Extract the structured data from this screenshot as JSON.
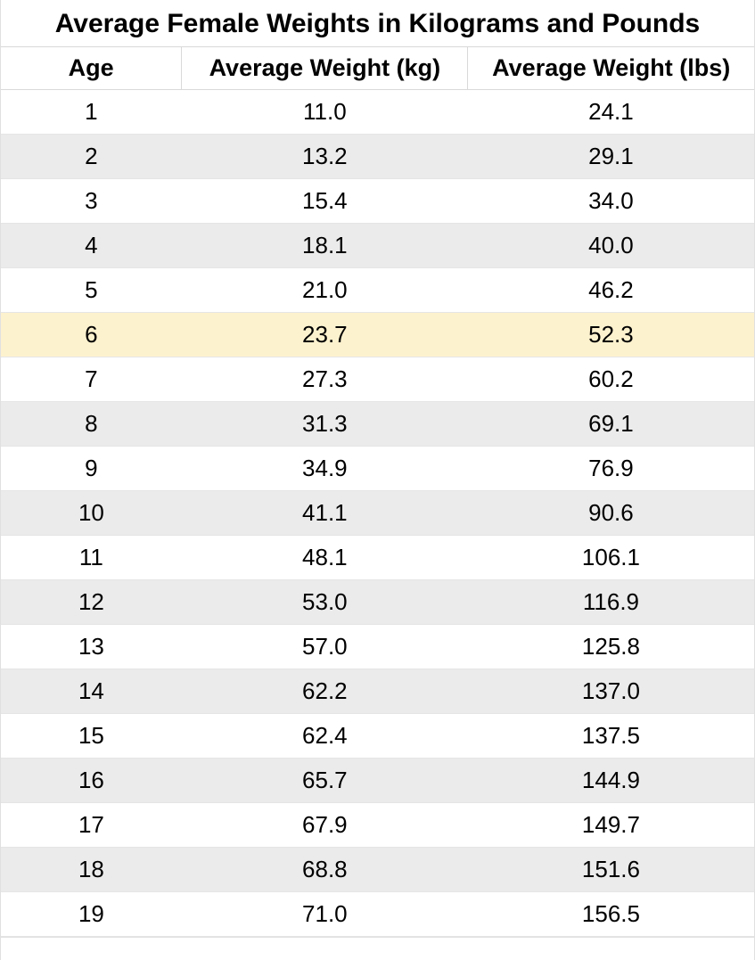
{
  "title": "Average Female Weights in Kilograms and Pounds",
  "columns": {
    "age": "Age",
    "kg": "Average Weight (kg)",
    "lbs": "Average Weight (lbs)"
  },
  "colors": {
    "row_odd_bg": "#ffffff",
    "row_even_bg": "#ebebeb",
    "highlight_bg": "#fdf2ce",
    "border": "#e0e0e0",
    "text": "#000000"
  },
  "typography": {
    "title_fontsize": 30,
    "header_fontsize": 27,
    "cell_fontsize": 26,
    "font_family": "Arial"
  },
  "column_widths_pct": [
    24,
    38,
    38
  ],
  "highlight_row_index": 5,
  "rows": [
    {
      "age": "1",
      "kg": "11.0",
      "lbs": "24.1"
    },
    {
      "age": "2",
      "kg": "13.2",
      "lbs": "29.1"
    },
    {
      "age": "3",
      "kg": "15.4",
      "lbs": "34.0"
    },
    {
      "age": "4",
      "kg": "18.1",
      "lbs": "40.0"
    },
    {
      "age": "5",
      "kg": "21.0",
      "lbs": "46.2"
    },
    {
      "age": "6",
      "kg": "23.7",
      "lbs": "52.3"
    },
    {
      "age": "7",
      "kg": "27.3",
      "lbs": "60.2"
    },
    {
      "age": "8",
      "kg": "31.3",
      "lbs": "69.1"
    },
    {
      "age": "9",
      "kg": "34.9",
      "lbs": "76.9"
    },
    {
      "age": "10",
      "kg": "41.1",
      "lbs": "90.6"
    },
    {
      "age": "11",
      "kg": "48.1",
      "lbs": "106.1"
    },
    {
      "age": "12",
      "kg": "53.0",
      "lbs": "116.9"
    },
    {
      "age": "13",
      "kg": "57.0",
      "lbs": "125.8"
    },
    {
      "age": "14",
      "kg": "62.2",
      "lbs": "137.0"
    },
    {
      "age": "15",
      "kg": "62.4",
      "lbs": "137.5"
    },
    {
      "age": "16",
      "kg": "65.7",
      "lbs": "144.9"
    },
    {
      "age": "17",
      "kg": "67.9",
      "lbs": "149.7"
    },
    {
      "age": "18",
      "kg": "68.8",
      "lbs": "151.6"
    },
    {
      "age": "19",
      "kg": "71.0",
      "lbs": "156.5"
    }
  ]
}
